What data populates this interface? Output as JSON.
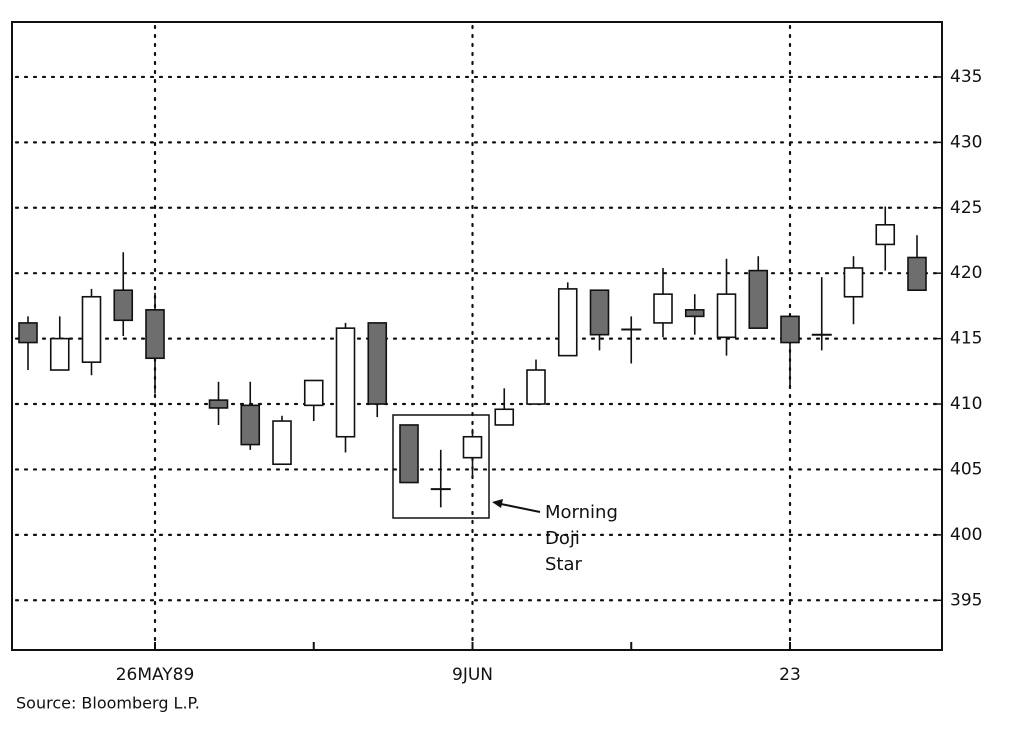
{
  "chart_data": {
    "type": "candlestick",
    "categories": [
      null,
      null,
      null,
      null,
      "26MAY89",
      null,
      null,
      null,
      null,
      null,
      null,
      null,
      null,
      null,
      "9JUN",
      null,
      null,
      null,
      null,
      null,
      null,
      null,
      null,
      null,
      "23",
      null,
      null,
      null,
      null
    ],
    "open": [
      416.2,
      412.6,
      413.2,
      418.7,
      417.2,
      null,
      410.3,
      409.9,
      405.4,
      409.9,
      407.5,
      416.2,
      408.4,
      403.5,
      405.9,
      408.4,
      410.0,
      413.7,
      418.7,
      415.7,
      416.2,
      417.2,
      415.1,
      420.2,
      416.7,
      415.3,
      418.2,
      422.2,
      421.2
    ],
    "high": [
      416.7,
      416.7,
      418.8,
      421.6,
      418.5,
      null,
      411.7,
      411.7,
      409.1,
      411.8,
      416.2,
      416.2,
      408.4,
      406.5,
      408.1,
      411.2,
      413.4,
      419.3,
      418.7,
      416.7,
      420.4,
      418.4,
      421.1,
      421.3,
      416.7,
      419.7,
      421.3,
      425.1,
      422.9
    ],
    "low": [
      412.6,
      412.6,
      412.2,
      415.2,
      410.8,
      null,
      408.4,
      406.5,
      405.4,
      408.7,
      406.3,
      409.0,
      404.0,
      402.1,
      404.4,
      408.4,
      410.0,
      413.7,
      414.1,
      413.1,
      415.1,
      415.3,
      413.7,
      415.8,
      411.3,
      414.1,
      416.1,
      420.2,
      418.7
    ],
    "close": [
      414.7,
      415.0,
      418.2,
      416.4,
      413.5,
      null,
      409.7,
      406.9,
      408.7,
      411.8,
      415.8,
      410.0,
      404.0,
      403.5,
      407.5,
      409.6,
      412.6,
      418.8,
      415.3,
      415.7,
      418.4,
      416.7,
      418.4,
      415.8,
      414.7,
      415.3,
      420.4,
      423.7,
      418.7
    ],
    "up_color": "#ffffff",
    "down_color": "#6e6e6e",
    "ylim": [
      391.2,
      439.2
    ],
    "yticks": [
      395,
      400,
      405,
      410,
      415,
      420,
      425,
      430,
      435
    ],
    "grid": true,
    "annotation": [
      "Morning",
      "Doji",
      "Star"
    ],
    "source": "Source: Bloomberg L.P."
  }
}
